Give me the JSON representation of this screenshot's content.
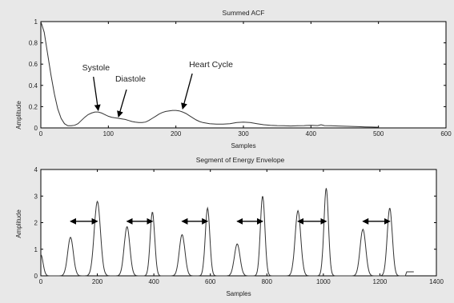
{
  "chart_data": [
    {
      "type": "line",
      "title": "Summed ACF",
      "xlabel": "Samples",
      "ylabel": "Amplitude",
      "xlim": [
        0,
        600
      ],
      "ylim": [
        0,
        1
      ],
      "xticks": [
        0,
        100,
        200,
        300,
        400,
        500,
        600
      ],
      "yticks": [
        0,
        0.2,
        0.4,
        0.6,
        0.8,
        1
      ],
      "grid": false,
      "series": [
        {
          "x": [
            0,
            5,
            10,
            15,
            20,
            25,
            30,
            35,
            40,
            45,
            50,
            55,
            60,
            65,
            70,
            75,
            80,
            85,
            90,
            95,
            100,
            105,
            110,
            115,
            120,
            125,
            130,
            135,
            140,
            145,
            150,
            155,
            160,
            165,
            170,
            175,
            180,
            185,
            190,
            195,
            200,
            205,
            210,
            215,
            220,
            225,
            230,
            235,
            240,
            245,
            250,
            260,
            270,
            280,
            290,
            300,
            310,
            320,
            330,
            340,
            350,
            360,
            370,
            380,
            390,
            400,
            410,
            415,
            420,
            430,
            440,
            450,
            460,
            470,
            480,
            490,
            500
          ],
          "values": [
            1.0,
            0.9,
            0.7,
            0.5,
            0.32,
            0.18,
            0.09,
            0.04,
            0.02,
            0.02,
            0.025,
            0.04,
            0.07,
            0.1,
            0.125,
            0.14,
            0.15,
            0.15,
            0.14,
            0.125,
            0.11,
            0.1,
            0.095,
            0.09,
            0.085,
            0.08,
            0.07,
            0.06,
            0.055,
            0.05,
            0.05,
            0.055,
            0.07,
            0.09,
            0.11,
            0.13,
            0.145,
            0.155,
            0.16,
            0.165,
            0.165,
            0.16,
            0.15,
            0.135,
            0.115,
            0.095,
            0.075,
            0.06,
            0.05,
            0.045,
            0.04,
            0.035,
            0.035,
            0.04,
            0.05,
            0.055,
            0.05,
            0.04,
            0.03,
            0.025,
            0.022,
            0.02,
            0.018,
            0.02,
            0.022,
            0.025,
            0.022,
            0.03,
            0.022,
            0.02,
            0.018,
            0.016,
            0.014,
            0.012,
            0.01,
            0.008,
            0.007
          ]
        }
      ],
      "annotations": [
        {
          "text": "Systole",
          "x": 85,
          "y": 0.15
        },
        {
          "text": "Diastole",
          "x": 115,
          "y": 0.09
        },
        {
          "text": "Heart Cycle",
          "x": 210,
          "y": 0.165
        }
      ]
    },
    {
      "type": "line",
      "title": "Segment of Energy Envelope",
      "xlabel": "Samples",
      "ylabel": "Amplitude",
      "xlim": [
        0,
        1400
      ],
      "ylim": [
        0,
        4
      ],
      "xticks": [
        0,
        200,
        400,
        600,
        800,
        1000,
        1200,
        1400
      ],
      "yticks": [
        0,
        1,
        2,
        3,
        4
      ],
      "grid": false,
      "peaks": [
        {
          "x": 0,
          "height": 0.8,
          "width": 8
        },
        {
          "x": 105,
          "height": 1.45,
          "width": 10
        },
        {
          "x": 200,
          "height": 2.8,
          "width": 11
        },
        {
          "x": 305,
          "height": 1.85,
          "width": 10
        },
        {
          "x": 395,
          "height": 2.4,
          "width": 8
        },
        {
          "x": 500,
          "height": 1.55,
          "width": 10
        },
        {
          "x": 590,
          "height": 2.55,
          "width": 8
        },
        {
          "x": 695,
          "height": 1.2,
          "width": 10
        },
        {
          "x": 785,
          "height": 3.0,
          "width": 8
        },
        {
          "x": 910,
          "height": 2.45,
          "width": 10
        },
        {
          "x": 1010,
          "height": 3.3,
          "width": 8
        },
        {
          "x": 1140,
          "height": 1.75,
          "width": 10
        },
        {
          "x": 1235,
          "height": 2.55,
          "width": 9
        }
      ],
      "signal_end": 1290,
      "tail_value": 0.15,
      "cycle_arrows": [
        {
          "x1": 105,
          "x2": 200,
          "y": 2.05
        },
        {
          "x1": 305,
          "x2": 395,
          "y": 2.05
        },
        {
          "x1": 500,
          "x2": 590,
          "y": 2.05
        },
        {
          "x1": 695,
          "x2": 785,
          "y": 2.05
        },
        {
          "x1": 910,
          "x2": 1010,
          "y": 2.05
        },
        {
          "x1": 1140,
          "x2": 1235,
          "y": 2.05
        }
      ]
    }
  ]
}
